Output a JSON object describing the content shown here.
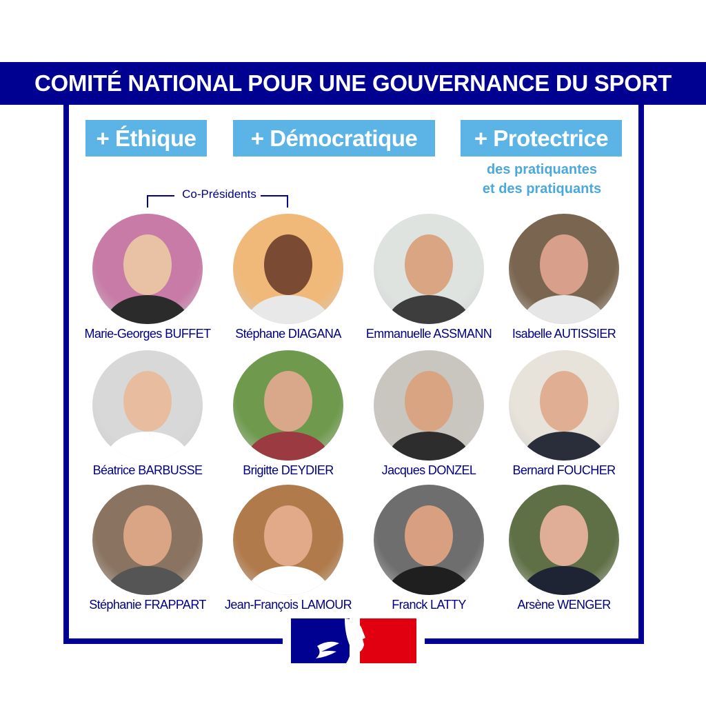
{
  "header": {
    "title": "COMITÉ NATIONAL POUR UNE GOUVERNANCE DU SPORT"
  },
  "tags": [
    {
      "label": "+ Éthique"
    },
    {
      "label": "+ Démocratique"
    },
    {
      "label": "+ Protectrice"
    }
  ],
  "protectrice_sub": {
    "line1": "des pratiquantes",
    "line2": "et des pratiquants"
  },
  "co_presidents_label": "Co-Présidents",
  "members": [
    {
      "name": "Marie-Georges BUFFET",
      "bg": "#c77ba6",
      "skin": "#e9c2a6",
      "cloth": "#2b2b2b"
    },
    {
      "name": "Stéphane DIAGANA",
      "bg": "#f0b97a",
      "skin": "#7a4a32",
      "cloth": "#e8e8e8"
    },
    {
      "name": "Emmanuelle ASSMANN",
      "bg": "#dfe3e0",
      "skin": "#d9a583",
      "cloth": "#3d3d3d"
    },
    {
      "name": "Isabelle AUTISSIER",
      "bg": "#7a6650",
      "skin": "#d8a08a",
      "cloth": "#e6e6e6"
    },
    {
      "name": "Béatrice BARBUSSE",
      "bg": "#d8d8d8",
      "skin": "#e8bd9f",
      "cloth": "#ffffff"
    },
    {
      "name": "Brigitte DEYDIER",
      "bg": "#6f9a4e",
      "skin": "#d9a88a",
      "cloth": "#9b3a40"
    },
    {
      "name": "Jacques DONZEL",
      "bg": "#c9c5bf",
      "skin": "#d8a482",
      "cloth": "#2d2d2d"
    },
    {
      "name": "Bernard FOUCHER",
      "bg": "#e7e2da",
      "skin": "#e0ae92",
      "cloth": "#2a2d3a"
    },
    {
      "name": "Stéphanie FRAPPART",
      "bg": "#8a7360",
      "skin": "#d9a584",
      "cloth": "#555555"
    },
    {
      "name": "Jean-François LAMOUR",
      "bg": "#b07a4a",
      "skin": "#e3aa8a",
      "cloth": "#ffffff"
    },
    {
      "name": "Franck LATTY",
      "bg": "#6e6e6e",
      "skin": "#d8a080",
      "cloth": "#1f1f1f"
    },
    {
      "name": "Arsène WENGER",
      "bg": "#5f7046",
      "skin": "#e0ae96",
      "cloth": "#1e2433"
    }
  ],
  "logo": {
    "name": "republique-francaise-marianne-logo",
    "blue": "#000091",
    "red": "#e1000f"
  },
  "colors": {
    "navy": "#000091",
    "tag_blue": "#5bb3e6",
    "sub_blue": "#4aa8dc"
  }
}
